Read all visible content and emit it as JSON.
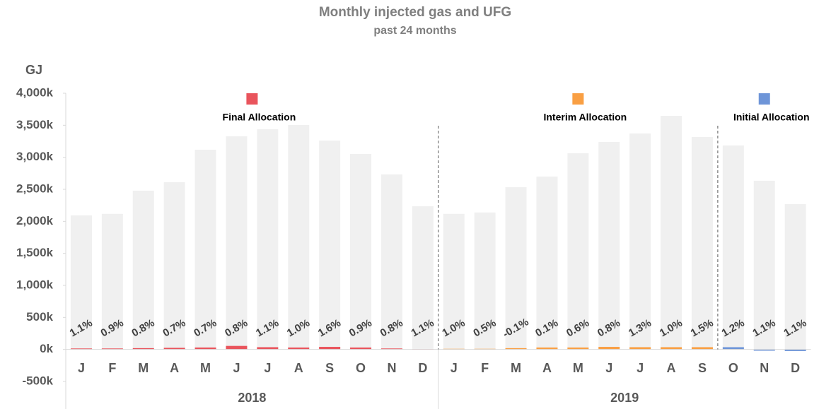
{
  "chart_data": {
    "type": "bar",
    "title": "Monthly injected gas and UFG",
    "subtitle": "past 24 months",
    "y_label": "GJ",
    "category_groups": [
      {
        "label": "2018",
        "categories": [
          "J",
          "F",
          "M",
          "A",
          "M",
          "J",
          "J",
          "A",
          "S",
          "O",
          "N",
          "D"
        ]
      },
      {
        "label": "2019",
        "categories": [
          "J",
          "F",
          "M",
          "A",
          "M",
          "J",
          "J",
          "A",
          "S",
          "O",
          "N",
          "D"
        ]
      }
    ],
    "ylim": [
      -500000,
      4000000
    ],
    "yticks": [
      {
        "value": -500000,
        "label": "-500k"
      },
      {
        "value": 0,
        "label": "0k"
      },
      {
        "value": 500000,
        "label": "500k"
      },
      {
        "value": 1000000,
        "label": "1,000k"
      },
      {
        "value": 1500000,
        "label": "1,500k"
      },
      {
        "value": 2000000,
        "label": "2,000k"
      },
      {
        "value": 2500000,
        "label": "2,500k"
      },
      {
        "value": 3000000,
        "label": "3,000k"
      },
      {
        "value": 3500000,
        "label": "3,500k"
      },
      {
        "value": 4000000,
        "label": "4,000k"
      }
    ],
    "background_series": {
      "color": "#f0f0f0",
      "values": [
        2094000,
        2116000,
        2479000,
        2611000,
        3118000,
        3328000,
        3438000,
        3504000,
        3262000,
        3052000,
        2733000,
        2237000,
        2116000,
        2138000,
        2534000,
        2700000,
        3063000,
        3240000,
        3372000,
        3647000,
        3317000,
        3185000,
        2634000,
        2270000
      ]
    },
    "series": [
      {
        "name": "Final Allocation",
        "color": "#e9545c",
        "values": [
          15000,
          15000,
          20000,
          25000,
          30000,
          55000,
          35000,
          30000,
          40000,
          30000,
          15000,
          5000,
          null,
          null,
          null,
          null,
          null,
          null,
          null,
          null,
          null,
          null,
          null,
          null
        ]
      },
      {
        "name": "Interim Allocation",
        "color": "#f99f43",
        "values": [
          null,
          null,
          null,
          null,
          null,
          null,
          null,
          null,
          null,
          null,
          null,
          null,
          10000,
          10000,
          20000,
          30000,
          30000,
          40000,
          35000,
          35000,
          35000,
          null,
          null,
          null
        ]
      },
      {
        "name": "Initial Allocation",
        "color": "#6e95d8",
        "values": [
          null,
          null,
          null,
          null,
          null,
          null,
          null,
          null,
          null,
          null,
          null,
          null,
          null,
          null,
          null,
          null,
          null,
          null,
          null,
          null,
          null,
          35000,
          -20000,
          -25000
        ]
      }
    ],
    "ufg_percent": [
      1.1,
      0.9,
      0.8,
      0.7,
      0.7,
      0.8,
      1.1,
      1.0,
      1.6,
      0.9,
      0.8,
      1.1,
      1.0,
      0.5,
      -0.1,
      0.1,
      0.6,
      0.8,
      1.3,
      1.0,
      1.5,
      1.2,
      1.1,
      1.1
    ],
    "ufg_percent_labels": [
      "1.1%",
      "0.9%",
      "0.8%",
      "0.7%",
      "0.7%",
      "0.8%",
      "1.1%",
      "1.0%",
      "1.6%",
      "0.9%",
      "0.8%",
      "1.1%",
      "1.0%",
      "0.5%",
      "-0.1%",
      "0.1%",
      "0.6%",
      "0.8%",
      "1.3%",
      "1.0%",
      "1.5%",
      "1.2%",
      "1.1%",
      "1.1%"
    ]
  }
}
